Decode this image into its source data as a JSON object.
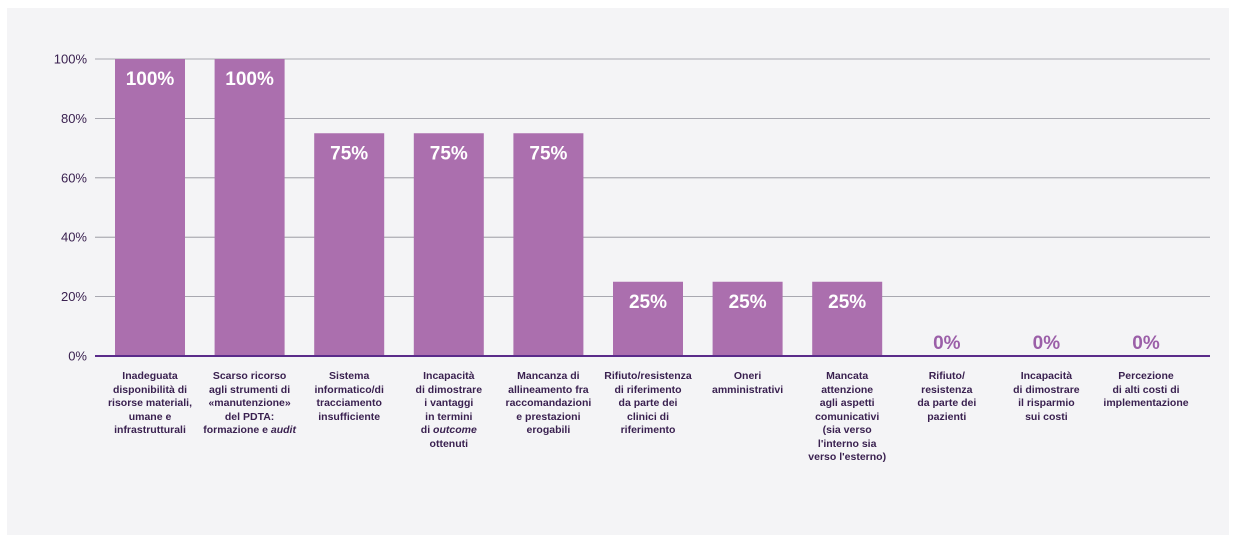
{
  "chart_data": {
    "type": "bar",
    "categories": [
      "Inadeguata\ndisponibilità di\nrisorse materiali,\numane e\ninfrastrutturali",
      "Scarso ricorso\nagli strumenti di\n«manutenzione»\ndel PDTA:\nformazione e audit",
      "Sistema\ninformatico/di\ntracciamento\ninsufficiente",
      "Incapacità\ndi dimostrare\ni vantaggi\nin termini\ndi outcome\nottenuti",
      "Mancanza di\nallineamento fra\nraccomandazioni\ne prestazioni\nerogabili",
      "Rifiuto/resistenza\ndi riferimento\nda parte dei\nclinici  di\nriferimento",
      "Oneri\namministrativi",
      "Mancata\nattenzione\nagli aspetti\ncomunicativi\n(sia verso\nl'interno sia\nverso l'esterno)",
      "Rifiuto/\nresistenza\nda parte dei\npazienti",
      "Incapacità\ndi dimostrare\nil risparmio\nsui costi",
      "Percezione\ndi alti costi di\nimplementazione"
    ],
    "values": [
      100,
      100,
      75,
      75,
      75,
      25,
      25,
      25,
      0,
      0,
      0
    ],
    "value_labels": [
      "100%",
      "100%",
      "75%",
      "75%",
      "75%",
      "25%",
      "25%",
      "25%",
      "0%",
      "0%",
      "0%"
    ],
    "y_ticks": [
      "0%",
      "20%",
      "40%",
      "60%",
      "80%",
      "100%"
    ],
    "ylim": [
      0,
      100
    ],
    "grid": true,
    "legend": "none",
    "title": "",
    "xlabel": "",
    "ylabel": ""
  },
  "colors": {
    "bar": "#ab6fae",
    "axis": "#5a2b8a",
    "grid": "#8f8f98",
    "label_on_bar": "#ffffff",
    "label_above_bar": "#9b5fa8",
    "panel_bg": "#f4f4f6"
  }
}
